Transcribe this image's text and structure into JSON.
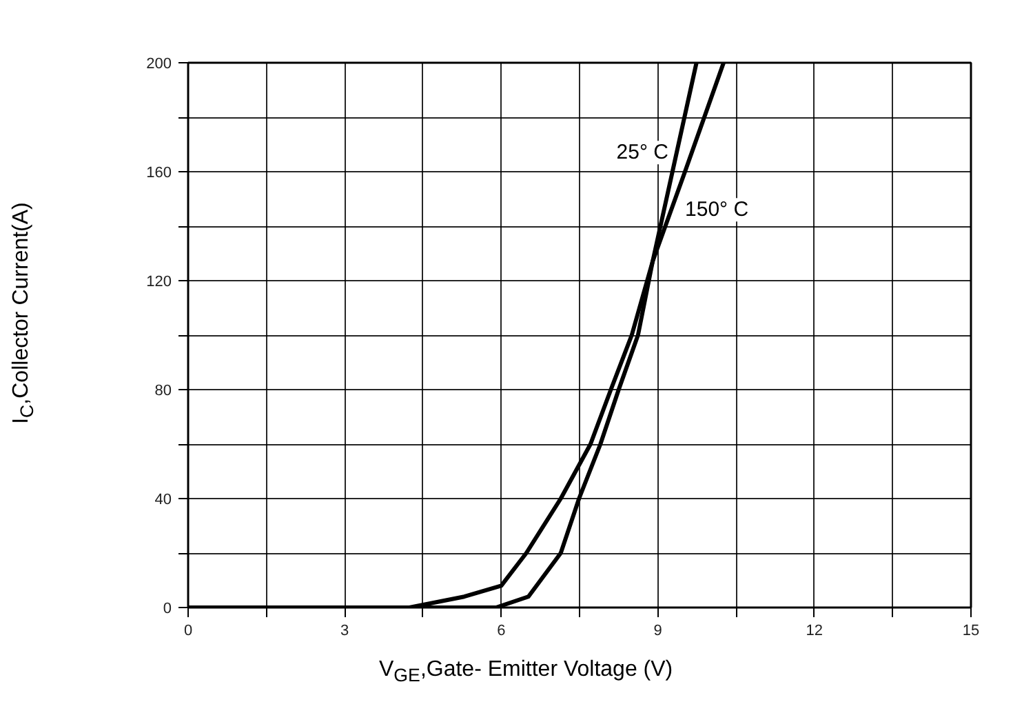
{
  "chart_data": {
    "type": "line",
    "xlabel": "V$_{GE}$,Gate- Emitter Voltage (V)",
    "ylabel": "I$_{C}$,Collector Current(A)",
    "xlim": [
      0,
      15
    ],
    "xticks": [
      0,
      {
        "value": 1.5,
        "label": null
      },
      3,
      {
        "value": 4.5,
        "label": null
      },
      6,
      {
        "value": 7.5,
        "label": null
      },
      9,
      {
        "value": 10.5,
        "label": null
      },
      12,
      {
        "value": 13.5,
        "label": null
      },
      15
    ],
    "ylim": [
      0,
      200
    ],
    "yticks": [
      0,
      {
        "value": 20,
        "label": null
      },
      40,
      {
        "value": 60,
        "label": null
      },
      80,
      {
        "value": 100,
        "label": null
      },
      120,
      {
        "value": 140,
        "label": null
      },
      160,
      {
        "value": 180,
        "label": null
      },
      200
    ],
    "grid": true,
    "legend": false,
    "marker": "none",
    "line_style": "solid",
    "series": [
      {
        "name": "25° C",
        "color": "#000000",
        "x": [
          0,
          5.9,
          6.52,
          7.14,
          7.49,
          7.9,
          8.25,
          8.62,
          8.9,
          9.28,
          9.74
        ],
        "values": [
          0,
          0,
          4,
          20,
          40,
          60,
          80,
          100,
          127,
          160,
          200
        ]
      },
      {
        "name": "150° C",
        "color": "#000000",
        "x": [
          0,
          4.24,
          5.29,
          6.0,
          6.48,
          7.14,
          7.71,
          8.1,
          8.5,
          8.9,
          9.52,
          10.26
        ],
        "values": [
          0,
          0,
          4,
          8,
          20,
          40,
          60,
          80,
          100,
          127,
          160,
          200
        ]
      }
    ]
  }
}
